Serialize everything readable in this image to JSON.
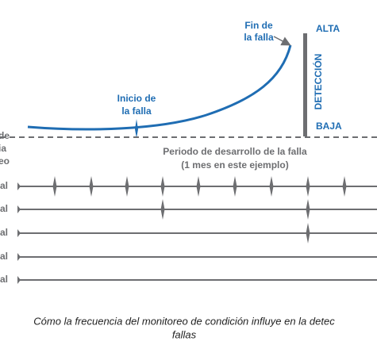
{
  "curve_labels": {
    "end": [
      "Fin de",
      "la falla"
    ],
    "start": [
      "Inicio de",
      "la falla"
    ]
  },
  "detection": {
    "high": "ALTA",
    "title": "DETECCIÓN",
    "low": "BAJA"
  },
  "period": [
    "Periodo de desarrollo de la falla",
    "(1 mes en este ejemplo)"
  ],
  "left_labels": [
    "de",
    "ia",
    "eo"
  ],
  "rows": [
    "al",
    "al",
    "al",
    "al",
    "al"
  ],
  "caption": [
    "Cómo la frecuencia del monitoreo de condición influye en la detec",
    "fallas"
  ]
}
